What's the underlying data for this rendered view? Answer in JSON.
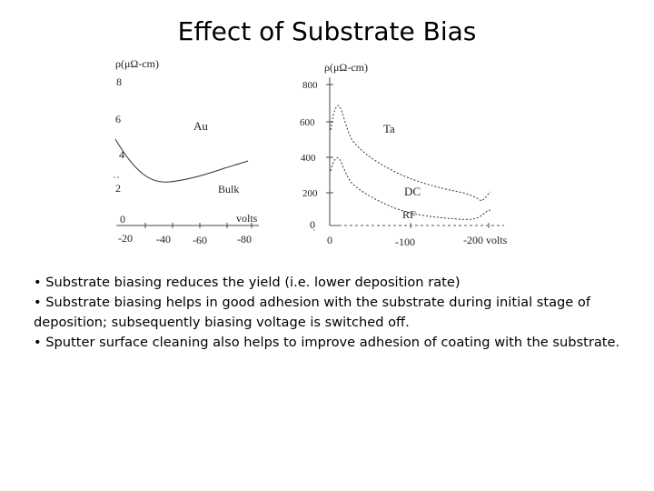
{
  "slide": {
    "title": "Effect of Substrate Bias"
  },
  "figure": {
    "au_panel": {
      "ylabel": "ρ(μΩ-cm)",
      "y_ticks": [
        "8",
        "6",
        "4",
        "2",
        "0"
      ],
      "x_ticks": [
        "-20",
        "-40",
        "-60",
        "-80"
      ],
      "x_unit": "volts",
      "metal_label": "Au",
      "bulk_label": "Bulk"
    },
    "ta_panel": {
      "ylabel": "ρ(μΩ-cm)",
      "y_ticks": [
        "800",
        "600",
        "400",
        "200",
        "0"
      ],
      "x_ticks": [
        "0",
        "-100",
        "-200 volts"
      ],
      "metal_label": "Ta",
      "dc_label": "DC",
      "rf_label": "RF"
    }
  },
  "bullets": [
    "• Substrate biasing reduces the yield (i.e. lower deposition rate)",
    "• Substrate biasing helps in good adhesion with the substrate during initial stage of deposition; subsequently biasing voltage is switched off.",
    "• Sputter surface cleaning also helps to improve adhesion of coating with the substrate."
  ]
}
